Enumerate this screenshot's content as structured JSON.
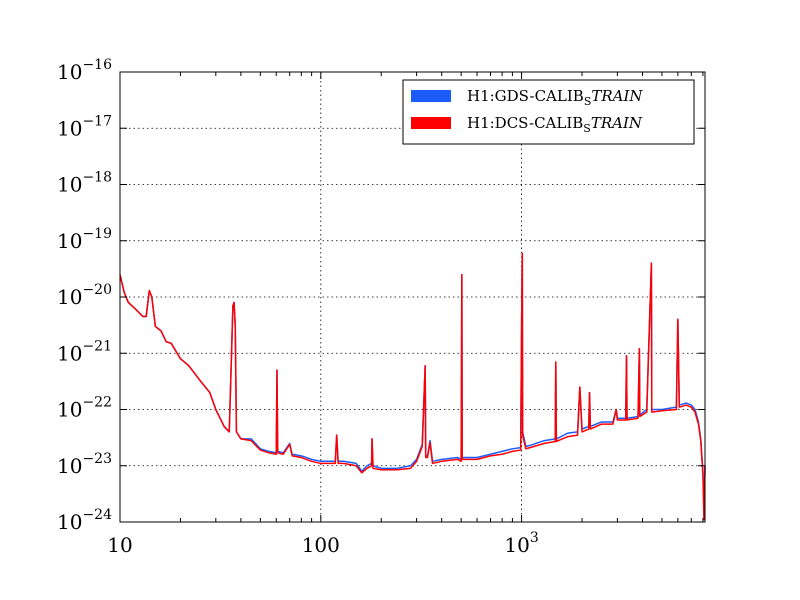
{
  "chart_data": {
    "type": "line",
    "title": "",
    "xlabel": "",
    "ylabel": "",
    "x_scale": "log",
    "y_scale": "log",
    "xlim": [
      10,
      8192
    ],
    "ylim": [
      1e-24,
      1e-16
    ],
    "grid": true,
    "legend_placement": "top-right",
    "x_ticks": [
      {
        "value": 10,
        "base": "10",
        "exp": ""
      },
      {
        "value": 100,
        "base": "100",
        "exp": ""
      },
      {
        "value": 1000,
        "base": "10",
        "exp": "3"
      }
    ],
    "y_ticks": [
      {
        "value": 1e-24,
        "base": "10",
        "exp": "−24"
      },
      {
        "value": 1e-23,
        "base": "10",
        "exp": "−23"
      },
      {
        "value": 1e-22,
        "base": "10",
        "exp": "−22"
      },
      {
        "value": 1e-21,
        "base": "10",
        "exp": "−21"
      },
      {
        "value": 1e-20,
        "base": "10",
        "exp": "−20"
      },
      {
        "value": 1e-19,
        "base": "10",
        "exp": "−19"
      },
      {
        "value": 1e-18,
        "base": "10",
        "exp": "−18"
      },
      {
        "value": 1e-17,
        "base": "10",
        "exp": "−17"
      },
      {
        "value": 1e-16,
        "base": "10",
        "exp": "−16"
      }
    ],
    "series": [
      {
        "name": "H1:GDS-CALIB_STRAIN",
        "legend_main": "H1:GDS-CALIB",
        "legend_sub": "S",
        "legend_ital": "TRAIN",
        "color": "#1a5cff",
        "points": [
          [
            10,
            2.5e-20
          ],
          [
            10.5,
            1.2e-20
          ],
          [
            11,
            8e-21
          ],
          [
            12,
            6e-21
          ],
          [
            13,
            4.5e-21
          ],
          [
            13.5,
            4.5e-21
          ],
          [
            14,
            1.3e-20
          ],
          [
            14.4,
            1e-20
          ],
          [
            15,
            3e-21
          ],
          [
            16,
            2.5e-21
          ],
          [
            17,
            1.6e-21
          ],
          [
            18,
            1.5e-21
          ],
          [
            20,
            8e-22
          ],
          [
            22,
            6e-22
          ],
          [
            25,
            3.3e-22
          ],
          [
            28,
            2e-22
          ],
          [
            30,
            1e-22
          ],
          [
            33,
            5e-23
          ],
          [
            35,
            4e-23
          ],
          [
            36.5,
            7e-21
          ],
          [
            37,
            8e-21
          ],
          [
            37.5,
            3e-21
          ],
          [
            38,
            4e-23
          ],
          [
            40,
            3e-23
          ],
          [
            45,
            3e-23
          ],
          [
            50,
            2e-23
          ],
          [
            55,
            1.8e-23
          ],
          [
            60,
            1.7e-23
          ],
          [
            60.5,
            5e-22
          ],
          [
            61,
            1.8e-23
          ],
          [
            65,
            1.7e-23
          ],
          [
            70,
            2.5e-23
          ],
          [
            72,
            1.6e-23
          ],
          [
            80,
            1.5e-23
          ],
          [
            90,
            1.3e-23
          ],
          [
            100,
            1.2e-23
          ],
          [
            110,
            1.2e-23
          ],
          [
            118,
            1.2e-23
          ],
          [
            120,
            3.5e-23
          ],
          [
            122,
            1.2e-23
          ],
          [
            130,
            1.2e-23
          ],
          [
            150,
            1.1e-23
          ],
          [
            160,
            8e-24
          ],
          [
            170,
            1e-23
          ],
          [
            179,
            1.1e-23
          ],
          [
            180,
            3e-23
          ],
          [
            182,
            1e-23
          ],
          [
            200,
            9e-24
          ],
          [
            240,
            9e-24
          ],
          [
            280,
            1e-23
          ],
          [
            300,
            1.3e-23
          ],
          [
            320,
            2.4e-23
          ],
          [
            331,
            6e-22
          ],
          [
            333,
            1.5e-23
          ],
          [
            340,
            1.5e-23
          ],
          [
            350,
            2.8e-23
          ],
          [
            360,
            1.2e-23
          ],
          [
            400,
            1.3e-23
          ],
          [
            480,
            1.4e-23
          ],
          [
            500,
            1.3e-23
          ],
          [
            504,
            2.5e-20
          ],
          [
            506,
            1.4e-23
          ],
          [
            600,
            1.4e-23
          ],
          [
            700,
            1.6e-23
          ],
          [
            800,
            1.8e-23
          ],
          [
            900,
            2e-23
          ],
          [
            990,
            2.1e-23
          ],
          [
            1000,
            3e-21
          ],
          [
            1008,
            6e-20
          ],
          [
            1012,
            4e-23
          ],
          [
            1050,
            2.2e-23
          ],
          [
            1100,
            2.3e-23
          ],
          [
            1300,
            2.8e-23
          ],
          [
            1470,
            3e-23
          ],
          [
            1480,
            7e-22
          ],
          [
            1490,
            3e-23
          ],
          [
            1700,
            3.8e-23
          ],
          [
            1900,
            4e-23
          ],
          [
            1950,
            2.5e-22
          ],
          [
            2000,
            4.5e-23
          ],
          [
            2160,
            5e-23
          ],
          [
            2180,
            2e-22
          ],
          [
            2200,
            5e-23
          ],
          [
            2500,
            6e-23
          ],
          [
            2850,
            6e-23
          ],
          [
            2960,
            1e-22
          ],
          [
            3000,
            7e-23
          ],
          [
            3300,
            7e-23
          ],
          [
            3330,
            9e-22
          ],
          [
            3350,
            7e-23
          ],
          [
            3800,
            7.5e-23
          ],
          [
            3860,
            1.2e-21
          ],
          [
            3880,
            8e-23
          ],
          [
            4200,
            1e-22
          ],
          [
            4430,
            4e-20
          ],
          [
            4450,
            1e-22
          ],
          [
            5000,
            1e-22
          ],
          [
            5900,
            1.1e-22
          ],
          [
            6000,
            4e-21
          ],
          [
            6100,
            1.2e-22
          ],
          [
            6600,
            1.3e-22
          ],
          [
            7000,
            1.2e-22
          ],
          [
            7300,
            1e-22
          ],
          [
            7600,
            6e-23
          ],
          [
            7800,
            3e-23
          ],
          [
            8000,
            8e-24
          ],
          [
            8100,
            1.2e-24
          ],
          [
            8192,
            1e-23
          ]
        ]
      },
      {
        "name": "H1:DCS-CALIB_STRAIN",
        "legend_main": "H1:DCS-CALIB",
        "legend_sub": "S",
        "legend_ital": "TRAIN",
        "color": "#ff0000",
        "points": [
          [
            10,
            2.5e-20
          ],
          [
            10.5,
            1.2e-20
          ],
          [
            11,
            8e-21
          ],
          [
            12,
            6e-21
          ],
          [
            13,
            4.5e-21
          ],
          [
            13.5,
            4.5e-21
          ],
          [
            14,
            1.3e-20
          ],
          [
            14.4,
            1e-20
          ],
          [
            15,
            3e-21
          ],
          [
            16,
            2.5e-21
          ],
          [
            17,
            1.6e-21
          ],
          [
            18,
            1.5e-21
          ],
          [
            20,
            8e-22
          ],
          [
            22,
            6e-22
          ],
          [
            25,
            3.3e-22
          ],
          [
            28,
            2e-22
          ],
          [
            30,
            1e-22
          ],
          [
            33,
            5e-23
          ],
          [
            35,
            4e-23
          ],
          [
            36.5,
            7e-21
          ],
          [
            37,
            8e-21
          ],
          [
            37.5,
            3e-21
          ],
          [
            38,
            4e-23
          ],
          [
            40,
            3e-23
          ],
          [
            45,
            2.8e-23
          ],
          [
            50,
            1.9e-23
          ],
          [
            55,
            1.7e-23
          ],
          [
            60,
            1.6e-23
          ],
          [
            60.5,
            5e-22
          ],
          [
            61,
            1.7e-23
          ],
          [
            65,
            1.6e-23
          ],
          [
            70,
            2.4e-23
          ],
          [
            72,
            1.5e-23
          ],
          [
            80,
            1.4e-23
          ],
          [
            90,
            1.2e-23
          ],
          [
            100,
            1.1e-23
          ],
          [
            110,
            1.1e-23
          ],
          [
            118,
            1.1e-23
          ],
          [
            120,
            3.5e-23
          ],
          [
            122,
            1.1e-23
          ],
          [
            130,
            1.1e-23
          ],
          [
            150,
            1e-23
          ],
          [
            160,
            7.5e-24
          ],
          [
            170,
            9e-24
          ],
          [
            179,
            1e-23
          ],
          [
            180,
            3e-23
          ],
          [
            182,
            9e-24
          ],
          [
            200,
            8.5e-24
          ],
          [
            240,
            8.5e-24
          ],
          [
            280,
            9e-24
          ],
          [
            300,
            1.2e-23
          ],
          [
            320,
            2.2e-23
          ],
          [
            331,
            6e-22
          ],
          [
            333,
            1.4e-23
          ],
          [
            340,
            1.4e-23
          ],
          [
            350,
            2.6e-23
          ],
          [
            360,
            1.1e-23
          ],
          [
            400,
            1.2e-23
          ],
          [
            480,
            1.3e-23
          ],
          [
            500,
            1.2e-23
          ],
          [
            504,
            2.5e-20
          ],
          [
            506,
            1.3e-23
          ],
          [
            600,
            1.3e-23
          ],
          [
            700,
            1.5e-23
          ],
          [
            800,
            1.6e-23
          ],
          [
            900,
            1.8e-23
          ],
          [
            990,
            1.9e-23
          ],
          [
            1000,
            3e-21
          ],
          [
            1008,
            6e-20
          ],
          [
            1012,
            3.5e-23
          ],
          [
            1050,
            2e-23
          ],
          [
            1100,
            2.1e-23
          ],
          [
            1300,
            2.5e-23
          ],
          [
            1470,
            2.7e-23
          ],
          [
            1480,
            7e-22
          ],
          [
            1490,
            2.7e-23
          ],
          [
            1700,
            3.3e-23
          ],
          [
            1900,
            3.5e-23
          ],
          [
            1950,
            2.5e-22
          ],
          [
            2000,
            4e-23
          ],
          [
            2160,
            4.5e-23
          ],
          [
            2180,
            2e-22
          ],
          [
            2200,
            4.5e-23
          ],
          [
            2500,
            5.5e-23
          ],
          [
            2850,
            5.5e-23
          ],
          [
            2960,
            1e-22
          ],
          [
            3000,
            6.5e-23
          ],
          [
            3300,
            6.5e-23
          ],
          [
            3330,
            9e-22
          ],
          [
            3350,
            6.5e-23
          ],
          [
            3800,
            7e-23
          ],
          [
            3860,
            1.2e-21
          ],
          [
            3880,
            7.5e-23
          ],
          [
            4200,
            9e-23
          ],
          [
            4430,
            4e-20
          ],
          [
            4450,
            9e-23
          ],
          [
            5000,
            9.5e-23
          ],
          [
            5900,
            1e-22
          ],
          [
            6000,
            4e-21
          ],
          [
            6100,
            1.1e-22
          ],
          [
            6600,
            1.2e-22
          ],
          [
            7000,
            1.1e-22
          ],
          [
            7300,
            9e-23
          ],
          [
            7600,
            5.5e-23
          ],
          [
            7800,
            2.8e-23
          ],
          [
            8000,
            7e-24
          ],
          [
            8100,
            1.1e-24
          ],
          [
            8192,
            1e-23
          ]
        ]
      }
    ]
  }
}
